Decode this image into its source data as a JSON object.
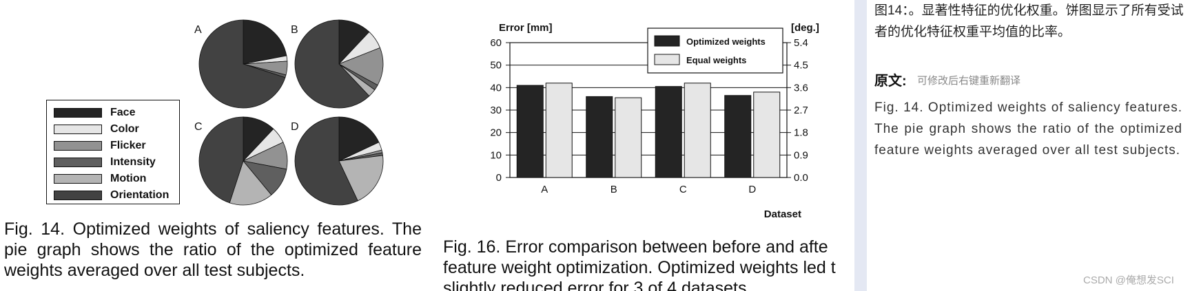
{
  "chart_data": [
    {
      "type": "pie",
      "legend": {
        "items": [
          {
            "label": "Face",
            "color": "#242424"
          },
          {
            "label": "Color",
            "color": "#e6e6e6"
          },
          {
            "label": "Flicker",
            "color": "#929292"
          },
          {
            "label": "Intensity",
            "color": "#5f5f5f"
          },
          {
            "label": "Motion",
            "color": "#b4b4b4"
          },
          {
            "label": "Orientation",
            "color": "#424242"
          }
        ]
      },
      "pies": [
        {
          "label": "A",
          "values": [
            0.22,
            0.02,
            0.05,
            0.01,
            0.0,
            0.7
          ]
        },
        {
          "label": "B",
          "values": [
            0.12,
            0.07,
            0.14,
            0.02,
            0.03,
            0.62
          ]
        },
        {
          "label": "C",
          "values": [
            0.12,
            0.06,
            0.1,
            0.11,
            0.16,
            0.45
          ]
        },
        {
          "label": "D",
          "values": [
            0.18,
            0.03,
            0.01,
            0.01,
            0.2,
            0.57
          ]
        }
      ]
    },
    {
      "type": "bar",
      "categories": [
        "A",
        "B",
        "C",
        "D"
      ],
      "series": [
        {
          "name": "Optimized weights",
          "values": [
            41,
            36,
            40.5,
            36.5
          ],
          "color": "#242424"
        },
        {
          "name": "Equal weights",
          "values": [
            42,
            35.5,
            42,
            38
          ],
          "color": "#e6e6e6"
        }
      ],
      "ylabel": "Error [mm]",
      "ylabel_right": "[deg.]",
      "xlabel": "Dataset",
      "ylim": [
        0,
        60
      ],
      "yticks": [
        "0",
        "10",
        "20",
        "30",
        "40",
        "50",
        "60"
      ],
      "yticks_right": [
        "0.0",
        "0.9",
        "1.8",
        "2.7",
        "3.6",
        "4.5",
        "5.4"
      ],
      "grid": true,
      "legend_position": "top-right"
    }
  ],
  "captions": {
    "fig14": "Fig. 14.  Optimized weights of saliency features. The pie graph shows the ratio of the optimized feature weights averaged over all test subjects.",
    "fig16_line1": "Fig. 16.  Error comparison between before and afte",
    "fig16_line2": "feature weight optimization. Optimized weights led t",
    "fig16_line3": "slightly reduced error for 3 of 4 datasets."
  },
  "side_panel": {
    "translation": "图14：。显著性特征的优化权重。饼图显示了所有受试者的优化特征权重平均值的比率。",
    "original_heading": "原文:",
    "original_hint": "可修改后右键重新翻译",
    "original_text": "Fig. 14. Optimized weights of saliency features. The pie graph shows the ratio of the optimized feature weights averaged over all test subjects.",
    "watermark": "CSDN @俺想发SCI"
  }
}
